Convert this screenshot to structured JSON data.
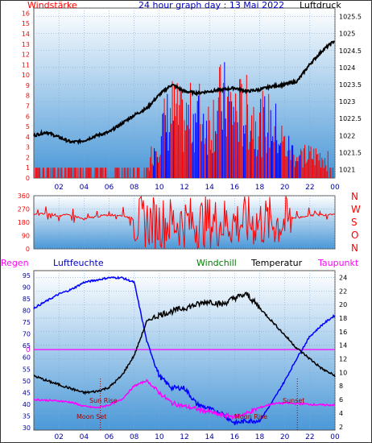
{
  "title": "24 hour graph day : 13 Mai 2022",
  "colors": {
    "wind": "#ff0000",
    "gust_blue": "#0000ff",
    "pressure": "#000000",
    "direction": "#ff0000",
    "humidity": "#0000ff",
    "windchill": "#008000",
    "temperature": "#000000",
    "dewpoint": "#ff00ff",
    "rain": "#ff00ff",
    "grid": "#7fa7cf",
    "bg_top": "#ffffff",
    "bg_bottom": "#4a98d8"
  },
  "top_panel": {
    "left_label": "Windstärke",
    "right_label": "Luftdruck",
    "wind_axis": [
      "0",
      "1",
      "2",
      "3",
      "4",
      "5",
      "6",
      "7",
      "8",
      "9",
      "10",
      "11",
      "12",
      "13",
      "14",
      "15",
      "16"
    ],
    "pressure_axis": [
      "1021",
      "1021.5",
      "1022",
      "1022.5",
      "1023",
      "1023.5",
      "1024",
      "1024.5",
      "1025",
      "1025.5"
    ]
  },
  "middle_panel": {
    "axis": [
      "0",
      "90",
      "180",
      "270",
      "360"
    ],
    "compass": [
      "N",
      "W",
      "S",
      "O",
      "N"
    ]
  },
  "bottom_panel": {
    "rain_label": "Regen",
    "humidity_label": "Luftfeuchte",
    "windchill_label": "Windchill",
    "temperature_label": "Temperatur",
    "dewpoint_label": "Taupunkt",
    "rain_value": "0",
    "humidity_axis": [
      "30",
      "35",
      "40",
      "45",
      "50",
      "55",
      "60",
      "65",
      "70",
      "75",
      "80",
      "85",
      "90",
      "95"
    ],
    "temp_axis": [
      "2",
      "4",
      "6",
      "8",
      "10",
      "12",
      "14",
      "16",
      "18",
      "20",
      "22",
      "24"
    ],
    "events": {
      "sun_rise": "Sun Rise",
      "moon_set": "Moon Set",
      "moon_rise": "Moon Rise",
      "sunset": "Sunset"
    }
  },
  "x_axis": [
    "02",
    "04",
    "06",
    "08",
    "10",
    "12",
    "14",
    "16",
    "18",
    "20",
    "22",
    "00"
  ],
  "chart_data": [
    {
      "type": "line",
      "name": "wind_and_pressure",
      "x": [
        0,
        1,
        2,
        3,
        4,
        5,
        6,
        7,
        8,
        9,
        10,
        11,
        12,
        13,
        14,
        15,
        16,
        17,
        18,
        19,
        20,
        21,
        22,
        23,
        24
      ],
      "series": [
        {
          "name": "Luftdruck",
          "axis": "right",
          "values": [
            1022.0,
            1022.1,
            1021.95,
            1021.8,
            1021.85,
            1022.0,
            1022.1,
            1022.35,
            1022.6,
            1022.8,
            1023.2,
            1023.5,
            1023.3,
            1023.25,
            1023.3,
            1023.35,
            1023.4,
            1023.3,
            1023.35,
            1023.45,
            1023.5,
            1023.6,
            1024.1,
            1024.5,
            1024.8
          ]
        },
        {
          "name": "Windstärke",
          "axis": "left",
          "values": [
            1,
            1,
            1,
            1,
            1,
            1,
            1,
            1,
            1,
            1,
            4,
            6,
            5,
            6,
            5,
            7,
            6,
            6,
            5,
            5,
            3,
            2,
            2,
            2,
            1
          ]
        }
      ],
      "ylim_left": [
        0,
        16.5
      ],
      "ylim_right": [
        1020.75,
        1025.75
      ]
    },
    {
      "type": "line",
      "name": "wind_direction",
      "x": [
        0,
        1,
        2,
        3,
        4,
        5,
        6,
        7,
        8,
        9,
        10,
        11,
        12,
        13,
        14,
        15,
        16,
        17,
        18,
        19,
        20,
        21,
        22,
        23,
        24
      ],
      "series": [
        {
          "name": "direction",
          "values": [
            230,
            240,
            225,
            230,
            200,
            220,
            230,
            230,
            200,
            180,
            170,
            190,
            170,
            180,
            190,
            175,
            185,
            170,
            200,
            180,
            220,
            210,
            230,
            230,
            240
          ]
        }
      ],
      "ylim": [
        0,
        360
      ]
    },
    {
      "type": "line",
      "name": "humidity_temperature",
      "x": [
        0,
        1,
        2,
        3,
        4,
        5,
        6,
        7,
        8,
        9,
        10,
        11,
        12,
        13,
        14,
        15,
        16,
        17,
        18,
        19,
        20,
        21,
        22,
        23,
        24
      ],
      "series": [
        {
          "name": "Luftfeuchte",
          "axis": "left",
          "values": [
            81,
            84,
            87,
            89,
            92,
            93,
            94,
            94,
            92,
            67,
            52,
            47,
            47,
            40,
            38,
            36,
            32,
            33,
            33,
            41,
            50,
            60,
            69,
            74,
            78
          ]
        },
        {
          "name": "Temperatur",
          "axis": "right",
          "values": [
            9.5,
            8.8,
            8.2,
            7.6,
            7.0,
            7.2,
            7.8,
            9.5,
            12.5,
            17.5,
            18.5,
            19.0,
            19.5,
            20.0,
            20.5,
            20.0,
            21.0,
            21.5,
            19.5,
            17.5,
            15.5,
            13.5,
            12.0,
            10.5,
            9.5
          ]
        },
        {
          "name": "Taupunkt",
          "axis": "right",
          "values": [
            6.0,
            5.9,
            5.8,
            5.6,
            5.0,
            4.8,
            5.2,
            6.0,
            8.0,
            8.8,
            7.0,
            5.5,
            5.0,
            4.6,
            4.2,
            3.7,
            3.5,
            4.0,
            4.8,
            5.4,
            5.5,
            5.4,
            5.3,
            5.2,
            5.2
          ]
        }
      ],
      "ylim_left": [
        29,
        97
      ],
      "ylim_right": [
        1.5,
        25
      ]
    }
  ]
}
